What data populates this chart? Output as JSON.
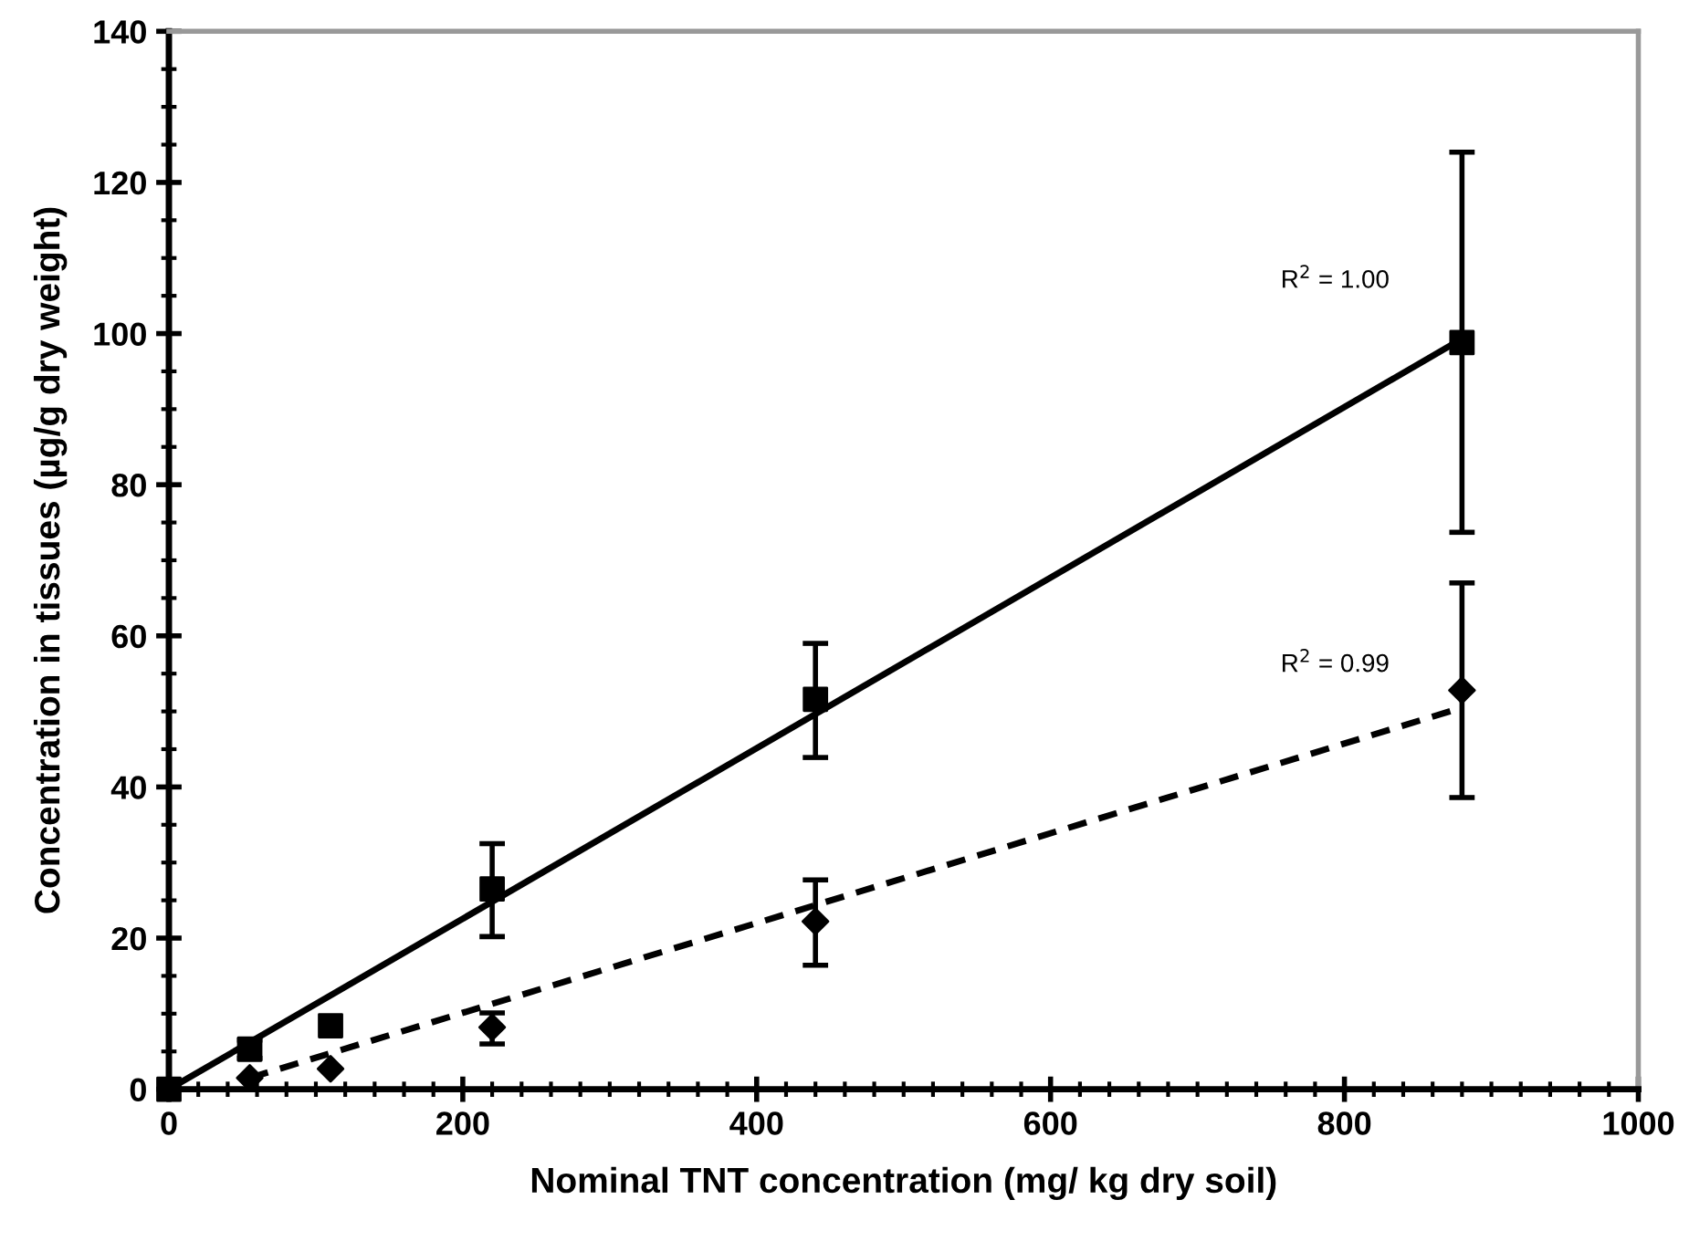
{
  "chart_data": {
    "type": "scatter",
    "xlabel": "Nominal TNT concentration (mg/ kg dry soil)",
    "ylabel": "Concentration in tissues (µg/g dry weight)",
    "xlim": [
      0,
      1000
    ],
    "xticks": [
      0,
      200,
      400,
      600,
      800,
      1000
    ],
    "ylim": [
      0,
      140
    ],
    "yticks": [
      0,
      20,
      40,
      60,
      80,
      100,
      120,
      140
    ],
    "grid": false,
    "legend": false,
    "series": [
      {
        "marker": "square",
        "color": "#000000",
        "x": [
          0,
          55,
          110,
          220,
          440,
          880
        ],
        "values": [
          0,
          5.3,
          8.4,
          26.5,
          51.6,
          98.8
        ],
        "errors": [
          null,
          [
            4.1,
            6.5
          ],
          null,
          [
            20.2,
            32.5
          ],
          [
            43.9,
            59
          ],
          [
            73.7,
            124
          ]
        ]
      },
      {
        "marker": "diamond",
        "color": "#000000",
        "x": [
          55,
          110,
          220,
          440,
          880
        ],
        "values": [
          1.5,
          2.7,
          8.2,
          22.2,
          52.8
        ],
        "errors": [
          null,
          null,
          [
            6.0,
            10.1
          ],
          [
            16.4,
            27.7
          ],
          [
            38.6,
            67
          ]
        ]
      },
      {
        "type": "line",
        "line_style": "solid",
        "color": "#000000",
        "x": [
          0,
          880
        ],
        "values": [
          0,
          99.3
        ]
      },
      {
        "type": "line",
        "line_style": "dashed",
        "color": "#000000",
        "x": [
          55,
          880
        ],
        "values": [
          1.5,
          50.5
        ]
      }
    ],
    "annotations": [
      "R$^{2}$ = 1.00",
      "R$^{2}$ = 0.99"
    ]
  }
}
